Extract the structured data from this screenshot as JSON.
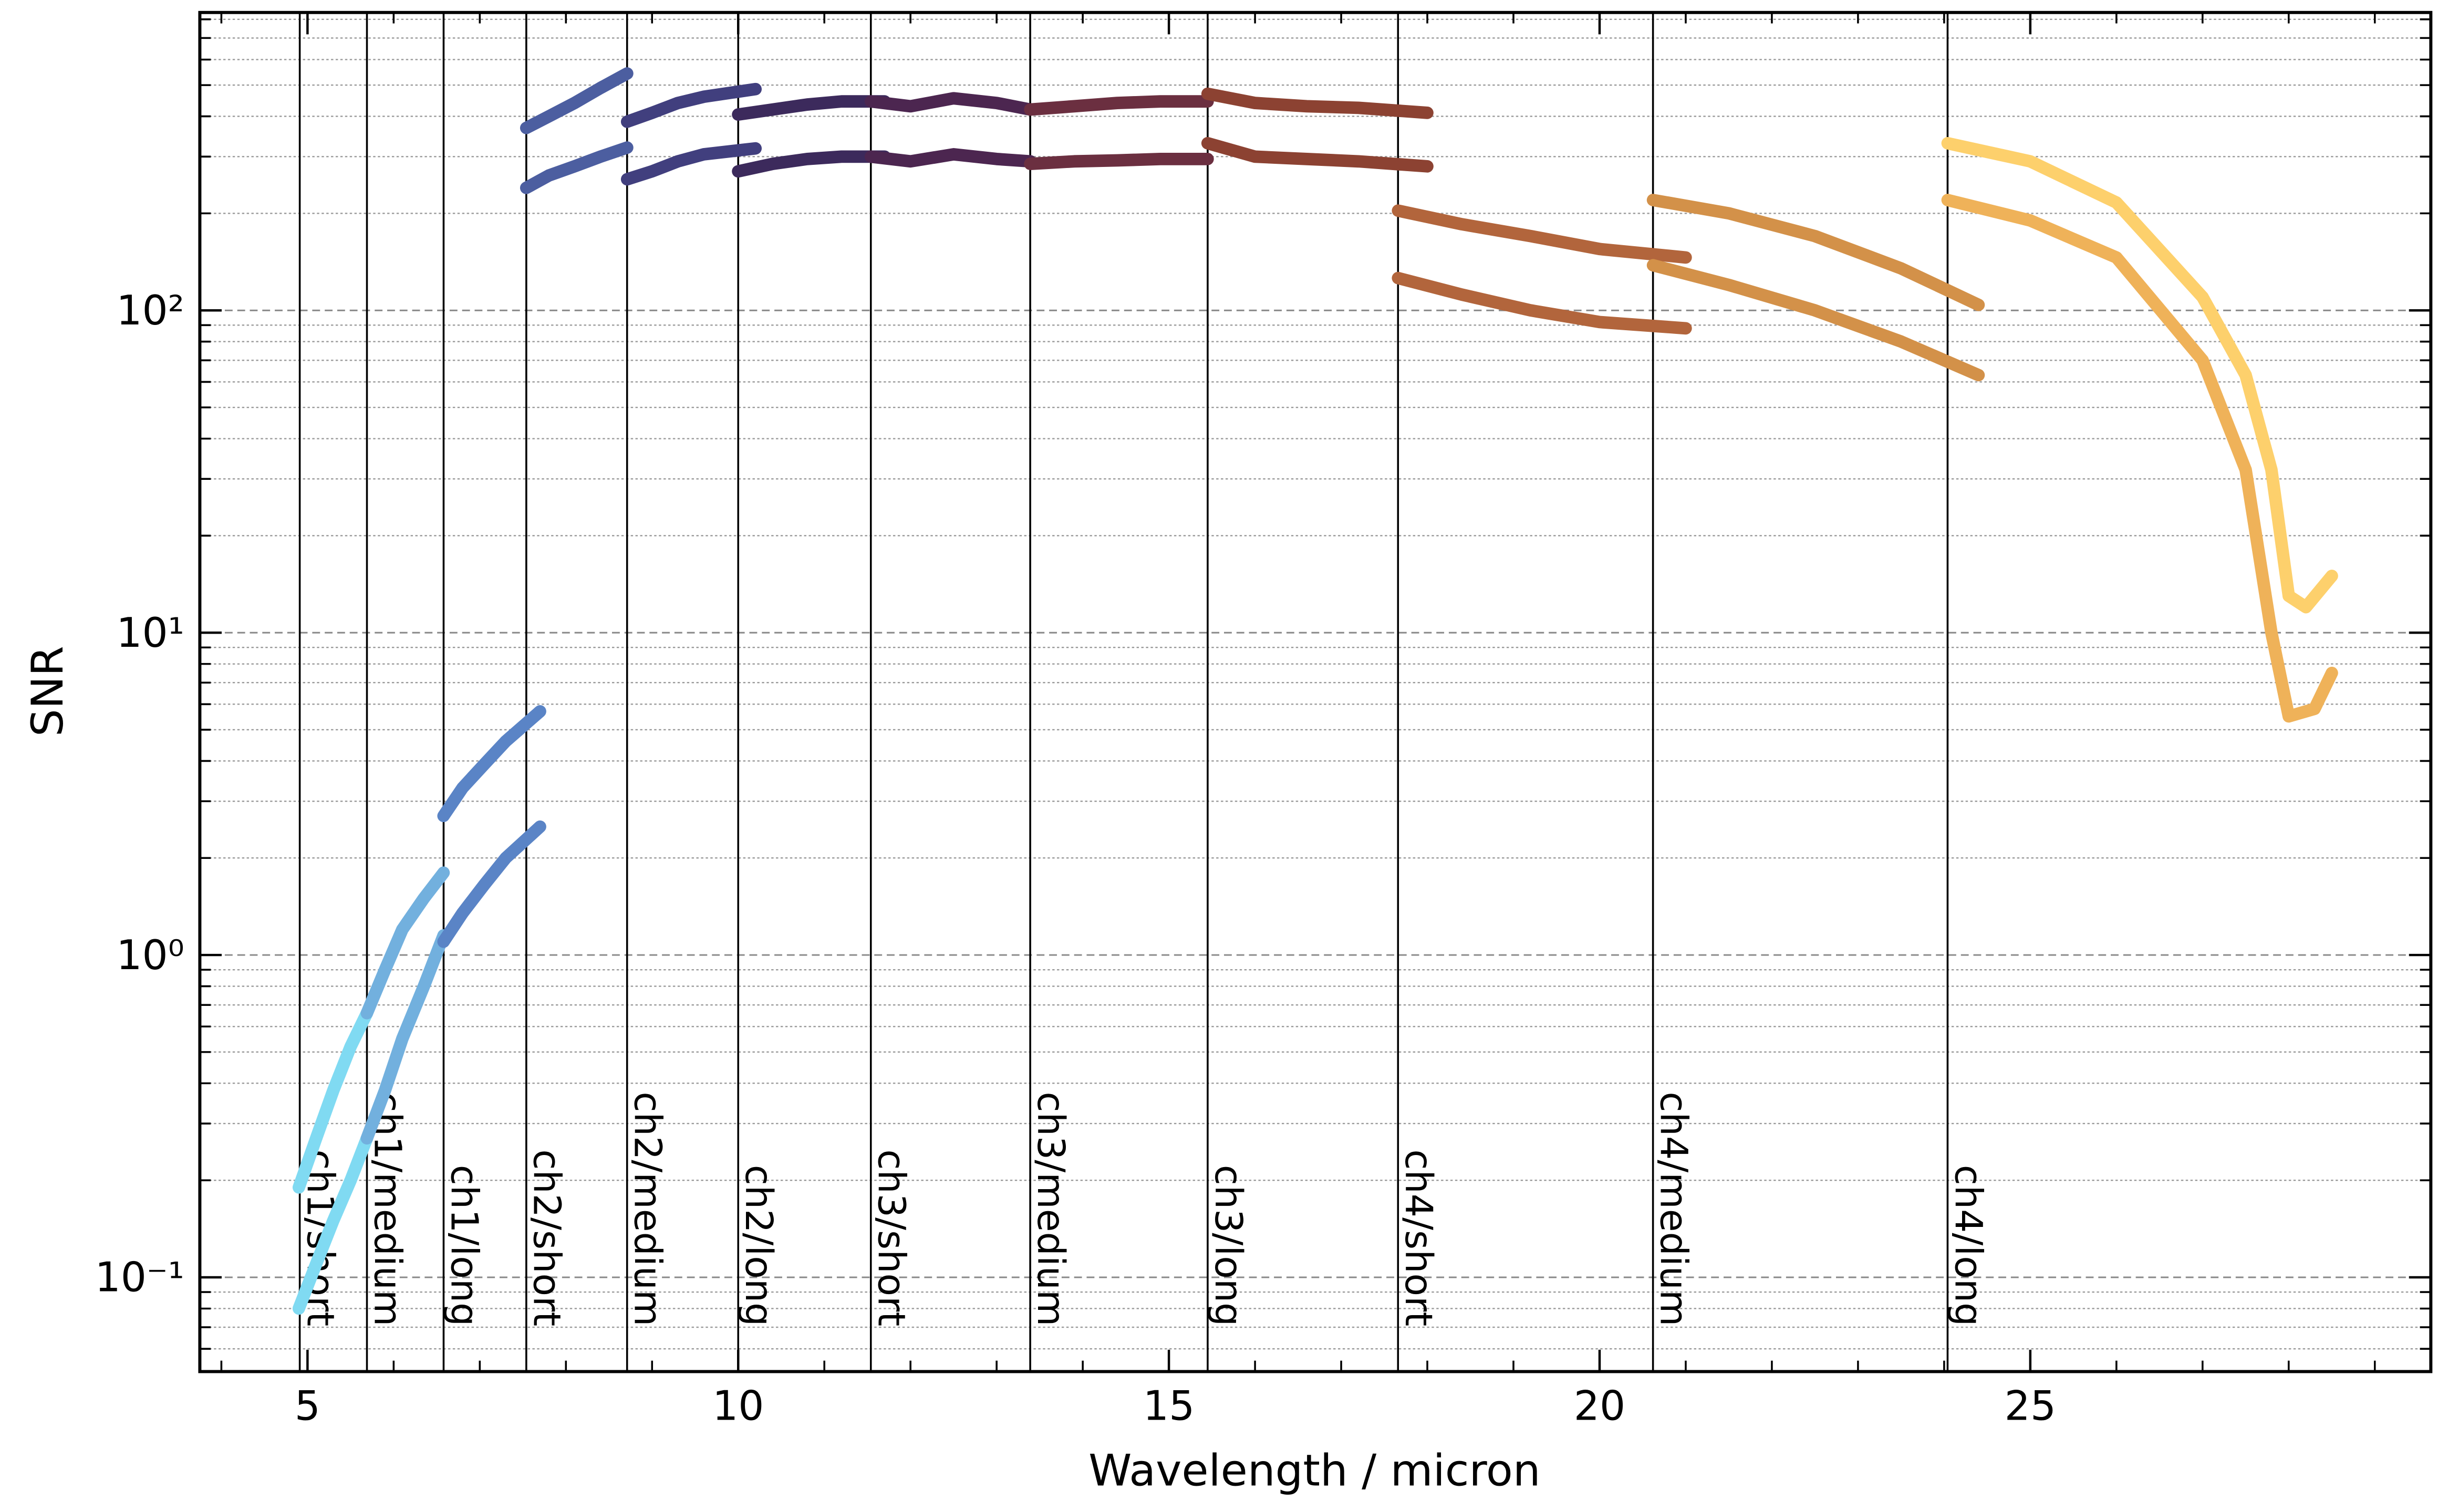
{
  "chart_data": {
    "type": "scatter",
    "x_label": "Wavelength / micron",
    "y_label": "SNR",
    "xlim": [
      3.75,
      29.65
    ],
    "xticks": [
      5,
      10,
      15,
      20,
      25
    ],
    "xminorticks": [
      4,
      6,
      7,
      8,
      9,
      11,
      12,
      13,
      14,
      16,
      17,
      18,
      19,
      21,
      22,
      23,
      24,
      26,
      27,
      28,
      29
    ],
    "ylim": [
      0.051,
      840
    ],
    "log_y": true,
    "grid": true,
    "yticks": [
      {
        "value": 0.1,
        "label": "10⁻¹"
      },
      {
        "value": 1,
        "label": "10⁰"
      },
      {
        "value": 10,
        "label": "10¹"
      },
      {
        "value": 100,
        "label": "10²"
      }
    ],
    "yminorticks": [
      0.06,
      0.07,
      0.08,
      0.09,
      0.2,
      0.3,
      0.4,
      0.5,
      0.6,
      0.7,
      0.8,
      0.9,
      2,
      3,
      4,
      5,
      6,
      7,
      8,
      9,
      20,
      30,
      40,
      50,
      60,
      70,
      80,
      90,
      200,
      300,
      400,
      500,
      600,
      700,
      800
    ],
    "bands": [
      {
        "label": "ch1/short",
        "x": 4.91
      },
      {
        "label": "ch1/medium",
        "x": 5.69
      },
      {
        "label": "ch1/long",
        "x": 6.58
      },
      {
        "label": "ch2/short",
        "x": 7.54
      },
      {
        "label": "ch2/medium",
        "x": 8.71
      },
      {
        "label": "ch2/long",
        "x": 10.0
      },
      {
        "label": "ch3/short",
        "x": 11.54
      },
      {
        "label": "ch3/medium",
        "x": 13.39
      },
      {
        "label": "ch3/long",
        "x": 15.45
      },
      {
        "label": "ch4/short",
        "x": 17.66
      },
      {
        "label": "ch4/medium",
        "x": 20.62
      },
      {
        "label": "ch4/long",
        "x": 24.04
      }
    ],
    "series": [
      {
        "color": "#80daf2",
        "x": [
          4.9,
          5.1,
          5.3,
          5.5,
          5.69
        ],
        "values": [
          0.19,
          0.27,
          0.38,
          0.52,
          0.66
        ]
      },
      {
        "color": "#80daf2",
        "x": [
          4.9,
          5.1,
          5.3,
          5.5,
          5.69
        ],
        "values": [
          0.08,
          0.11,
          0.15,
          0.2,
          0.27
        ]
      },
      {
        "color": "#72b0de",
        "x": [
          5.69,
          5.9,
          6.1,
          6.35,
          6.58
        ],
        "values": [
          0.66,
          0.9,
          1.2,
          1.5,
          1.8
        ]
      },
      {
        "color": "#72b0de",
        "x": [
          5.69,
          5.9,
          6.1,
          6.35,
          6.58
        ],
        "values": [
          0.27,
          0.38,
          0.55,
          0.8,
          1.15
        ]
      },
      {
        "color": "#5a84c6",
        "x": [
          6.58,
          6.8,
          7.05,
          7.3,
          7.7
        ],
        "values": [
          2.7,
          3.3,
          3.9,
          4.6,
          5.7
        ]
      },
      {
        "color": "#5a84c6",
        "x": [
          6.58,
          6.8,
          7.05,
          7.3,
          7.7
        ],
        "values": [
          1.1,
          1.35,
          1.65,
          2.0,
          2.5
        ]
      },
      {
        "color": "#4c5ea0",
        "x": [
          7.54,
          7.8,
          8.1,
          8.4,
          8.71
        ],
        "values": [
          368,
          400,
          440,
          490,
          543
        ]
      },
      {
        "color": "#4c5ea0",
        "x": [
          7.54,
          7.8,
          8.1,
          8.4,
          8.71
        ],
        "values": [
          240,
          262,
          280,
          300,
          320
        ]
      },
      {
        "color": "#413f7e",
        "x": [
          8.71,
          9.0,
          9.3,
          9.6,
          10.2
        ],
        "values": [
          385,
          410,
          440,
          460,
          486
        ]
      },
      {
        "color": "#413f7e",
        "x": [
          8.71,
          9.0,
          9.3,
          9.6,
          10.2
        ],
        "values": [
          255,
          270,
          290,
          305,
          318
        ]
      },
      {
        "color": "#3c2a5c",
        "x": [
          10.0,
          10.4,
          10.8,
          11.2,
          11.7
        ],
        "values": [
          405,
          420,
          435,
          445,
          445
        ]
      },
      {
        "color": "#3c2a5c",
        "x": [
          10.0,
          10.4,
          10.8,
          11.2,
          11.7
        ],
        "values": [
          270,
          285,
          295,
          300,
          300
        ]
      },
      {
        "color": "#4c2650",
        "x": [
          11.54,
          12.0,
          12.5,
          13.0,
          13.39
        ],
        "values": [
          445,
          430,
          455,
          440,
          420
        ]
      },
      {
        "color": "#4c2650",
        "x": [
          11.54,
          12.0,
          12.5,
          13.0,
          13.39
        ],
        "values": [
          300,
          290,
          305,
          295,
          290
        ]
      },
      {
        "color": "#6b2f40",
        "x": [
          13.39,
          13.9,
          14.4,
          14.9,
          15.45
        ],
        "values": [
          420,
          430,
          440,
          445,
          445
        ]
      },
      {
        "color": "#6b2f40",
        "x": [
          13.39,
          13.9,
          14.4,
          14.9,
          15.45
        ],
        "values": [
          285,
          290,
          292,
          295,
          295
        ]
      },
      {
        "color": "#8c4232",
        "x": [
          15.45,
          16.0,
          16.6,
          17.2,
          18.0
        ],
        "values": [
          470,
          440,
          430,
          425,
          410
        ]
      },
      {
        "color": "#8c4232",
        "x": [
          15.45,
          16.0,
          16.6,
          17.2,
          18.0
        ],
        "values": [
          330,
          300,
          295,
          290,
          280
        ]
      },
      {
        "color": "#b2653c",
        "x": [
          17.66,
          18.4,
          19.2,
          20.0,
          21.0
        ],
        "values": [
          204,
          185,
          170,
          155,
          146
        ]
      },
      {
        "color": "#b2653c",
        "x": [
          17.66,
          18.4,
          19.2,
          20.0,
          21.0
        ],
        "values": [
          126,
          112,
          100,
          92,
          88
        ]
      },
      {
        "color": "#d39149",
        "x": [
          20.62,
          21.5,
          22.5,
          23.5,
          24.4
        ],
        "values": [
          220,
          200,
          170,
          135,
          104
        ]
      },
      {
        "color": "#d39149",
        "x": [
          20.62,
          21.5,
          22.5,
          23.5,
          24.4
        ],
        "values": [
          138,
          120,
          100,
          80,
          63
        ]
      },
      {
        "color": "#fdd06c",
        "x": [
          24.04,
          25.0,
          26.0,
          27.0,
          27.5,
          27.8,
          28.0,
          28.2,
          28.5
        ],
        "values": [
          330,
          290,
          216,
          110,
          63,
          32,
          13,
          12,
          15
        ]
      },
      {
        "color": "#efb259",
        "x": [
          24.04,
          25.0,
          26.0,
          27.0,
          27.5,
          27.8,
          28.0,
          28.3,
          28.5
        ],
        "values": [
          220,
          190,
          146,
          70,
          32,
          10,
          5.5,
          5.8,
          7.5
        ]
      }
    ]
  }
}
